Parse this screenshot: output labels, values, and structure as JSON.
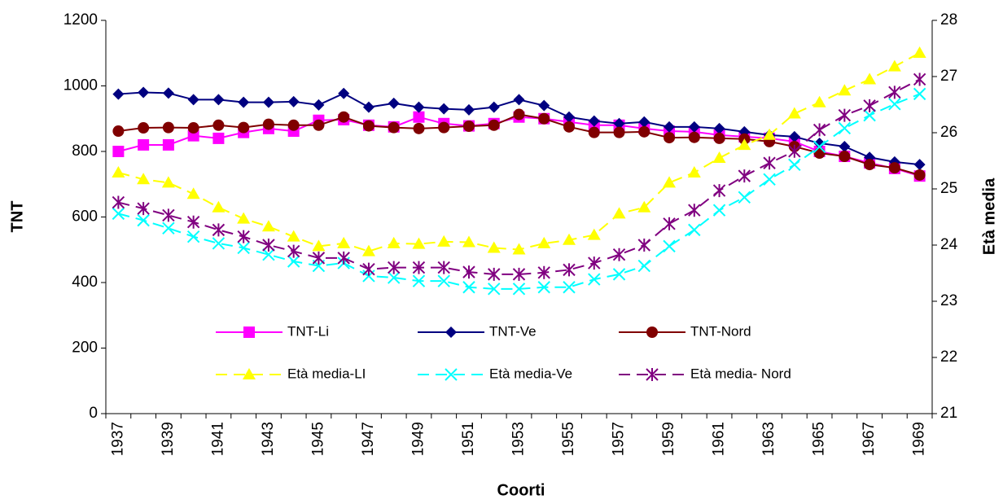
{
  "chart_data": {
    "type": "line",
    "x_label": "Coorti",
    "y_label": "TNT",
    "y2_label": "Età media",
    "categories": [
      "1937",
      null,
      "1939",
      null,
      "1941",
      null,
      "1943",
      null,
      "1945",
      null,
      "1947",
      null,
      "1949",
      null,
      "1951",
      null,
      "1953",
      null,
      "1955",
      null,
      "1957",
      null,
      "1959",
      null,
      "1961",
      null,
      "1963",
      null,
      "1965",
      null,
      "1967",
      null,
      "1969"
    ],
    "ylim": [
      0,
      1200
    ],
    "yticks": [
      0,
      200,
      400,
      600,
      800,
      1000,
      1200
    ],
    "y2lim": [
      21,
      28
    ],
    "y2ticks": [
      21,
      22,
      23,
      24,
      25,
      26,
      27,
      28
    ],
    "grid": false,
    "legend": "center",
    "series": [
      {
        "name": "TNT-Li",
        "color": "#ff00ff",
        "marker": "square",
        "dash": false,
        "values": [
          800,
          820,
          820,
          848,
          840,
          858,
          870,
          862,
          895,
          897,
          880,
          875,
          905,
          885,
          878,
          885,
          905,
          900,
          890,
          880,
          880,
          870,
          862,
          860,
          850,
          845,
          840,
          830,
          800,
          785,
          765,
          748,
          725
        ]
      },
      {
        "name": "TNT-Ve",
        "color": "#000080",
        "marker": "diamond",
        "dash": false,
        "values": [
          975,
          980,
          978,
          958,
          958,
          950,
          950,
          952,
          942,
          977,
          935,
          947,
          935,
          930,
          927,
          935,
          958,
          940,
          905,
          893,
          885,
          890,
          875,
          875,
          870,
          860,
          850,
          845,
          825,
          815,
          782,
          768,
          760
        ]
      },
      {
        "name": "TNT-Nord",
        "color": "#800000",
        "marker": "circle",
        "dash": false,
        "values": [
          862,
          872,
          873,
          872,
          880,
          873,
          883,
          880,
          880,
          905,
          878,
          873,
          870,
          873,
          877,
          880,
          913,
          900,
          875,
          858,
          858,
          860,
          842,
          843,
          840,
          838,
          830,
          815,
          795,
          785,
          760,
          750,
          728
        ]
      },
      {
        "name": "Età media-LI",
        "color": "#ffff00",
        "marker": "triangle",
        "dash": true,
        "axis": "y2",
        "values": [
          25.29,
          25.17,
          25.11,
          24.91,
          24.67,
          24.47,
          24.33,
          24.15,
          23.98,
          24.03,
          23.89,
          24.03,
          24.02,
          24.06,
          24.05,
          23.95,
          23.92,
          24.03,
          24.09,
          24.18,
          24.56,
          24.67,
          25.11,
          25.29,
          25.55,
          25.78,
          25.96,
          26.34,
          26.54,
          26.75,
          26.95,
          27.18,
          27.42
        ]
      },
      {
        "name": "Età media-Ve",
        "color": "#00ffff",
        "marker": "x",
        "dash": true,
        "axis": "y2",
        "values": [
          24.56,
          24.44,
          24.3,
          24.15,
          24.03,
          23.95,
          23.83,
          23.71,
          23.63,
          23.68,
          23.45,
          23.42,
          23.36,
          23.36,
          23.25,
          23.22,
          23.22,
          23.25,
          23.25,
          23.39,
          23.48,
          23.63,
          23.98,
          24.27,
          24.62,
          24.85,
          25.17,
          25.43,
          25.75,
          26.08,
          26.31,
          26.51,
          26.69
        ]
      },
      {
        "name": "Età media- Nord",
        "color": "#800080",
        "marker": "asterisk",
        "dash": true,
        "axis": "y2",
        "values": [
          24.76,
          24.65,
          24.53,
          24.41,
          24.27,
          24.15,
          24.0,
          23.89,
          23.77,
          23.77,
          23.57,
          23.6,
          23.6,
          23.6,
          23.52,
          23.48,
          23.48,
          23.51,
          23.56,
          23.68,
          23.83,
          24.0,
          24.38,
          24.62,
          24.97,
          25.23,
          25.46,
          25.67,
          26.05,
          26.31,
          26.48,
          26.72,
          26.95
        ]
      }
    ]
  }
}
